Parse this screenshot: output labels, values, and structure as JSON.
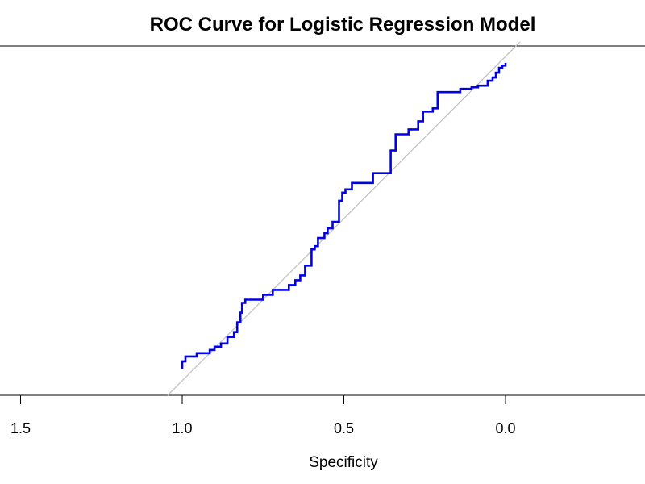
{
  "chart_data": {
    "type": "line",
    "title": "ROC Curve for Logistic Regression Model",
    "xlabel": "Specificity",
    "ylabel": "",
    "x_reversed": true,
    "xlim": [
      1.5,
      -0.4
    ],
    "ylim": [
      0,
      1
    ],
    "x_ticks": [
      1.5,
      1.0,
      0.5,
      0.0
    ],
    "x_tick_labels": [
      "1.5",
      "1.0",
      "0.5",
      "0.0"
    ],
    "grid": false,
    "legend": "none",
    "reference_line": {
      "from": [
        1,
        0
      ],
      "to": [
        0,
        1
      ],
      "color": "#c0c0c0"
    },
    "series": [
      {
        "color": "#0000ee",
        "points": [
          [
            1.0,
            0.035
          ],
          [
            1.0,
            0.06
          ],
          [
            0.99,
            0.06
          ],
          [
            0.99,
            0.075
          ],
          [
            0.955,
            0.075
          ],
          [
            0.955,
            0.085
          ],
          [
            0.915,
            0.085
          ],
          [
            0.915,
            0.095
          ],
          [
            0.9,
            0.095
          ],
          [
            0.9,
            0.105
          ],
          [
            0.88,
            0.105
          ],
          [
            0.88,
            0.115
          ],
          [
            0.86,
            0.115
          ],
          [
            0.86,
            0.135
          ],
          [
            0.84,
            0.135
          ],
          [
            0.84,
            0.15
          ],
          [
            0.83,
            0.15
          ],
          [
            0.83,
            0.18
          ],
          [
            0.82,
            0.18
          ],
          [
            0.82,
            0.21
          ],
          [
            0.815,
            0.21
          ],
          [
            0.815,
            0.24
          ],
          [
            0.805,
            0.24
          ],
          [
            0.805,
            0.25
          ],
          [
            0.75,
            0.25
          ],
          [
            0.75,
            0.265
          ],
          [
            0.72,
            0.265
          ],
          [
            0.72,
            0.28
          ],
          [
            0.67,
            0.28
          ],
          [
            0.67,
            0.295
          ],
          [
            0.65,
            0.295
          ],
          [
            0.65,
            0.31
          ],
          [
            0.635,
            0.31
          ],
          [
            0.635,
            0.325
          ],
          [
            0.62,
            0.325
          ],
          [
            0.62,
            0.355
          ],
          [
            0.6,
            0.355
          ],
          [
            0.6,
            0.405
          ],
          [
            0.59,
            0.405
          ],
          [
            0.59,
            0.415
          ],
          [
            0.58,
            0.415
          ],
          [
            0.58,
            0.44
          ],
          [
            0.56,
            0.44
          ],
          [
            0.56,
            0.455
          ],
          [
            0.55,
            0.455
          ],
          [
            0.55,
            0.47
          ],
          [
            0.535,
            0.47
          ],
          [
            0.535,
            0.49
          ],
          [
            0.515,
            0.49
          ],
          [
            0.515,
            0.555
          ],
          [
            0.505,
            0.555
          ],
          [
            0.505,
            0.58
          ],
          [
            0.495,
            0.58
          ],
          [
            0.495,
            0.59
          ],
          [
            0.475,
            0.59
          ],
          [
            0.475,
            0.61
          ],
          [
            0.41,
            0.61
          ],
          [
            0.41,
            0.64
          ],
          [
            0.355,
            0.64
          ],
          [
            0.355,
            0.71
          ],
          [
            0.34,
            0.71
          ],
          [
            0.34,
            0.76
          ],
          [
            0.3,
            0.76
          ],
          [
            0.3,
            0.775
          ],
          [
            0.27,
            0.775
          ],
          [
            0.27,
            0.8
          ],
          [
            0.255,
            0.8
          ],
          [
            0.255,
            0.83
          ],
          [
            0.225,
            0.83
          ],
          [
            0.225,
            0.84
          ],
          [
            0.21,
            0.84
          ],
          [
            0.21,
            0.89
          ],
          [
            0.14,
            0.89
          ],
          [
            0.14,
            0.9
          ],
          [
            0.105,
            0.9
          ],
          [
            0.105,
            0.905
          ],
          [
            0.085,
            0.905
          ],
          [
            0.085,
            0.91
          ],
          [
            0.055,
            0.91
          ],
          [
            0.055,
            0.925
          ],
          [
            0.04,
            0.925
          ],
          [
            0.04,
            0.935
          ],
          [
            0.03,
            0.935
          ],
          [
            0.03,
            0.95
          ],
          [
            0.02,
            0.95
          ],
          [
            0.02,
            0.965
          ],
          [
            0.01,
            0.965
          ],
          [
            0.01,
            0.972
          ],
          [
            0.0,
            0.972
          ],
          [
            0.0,
            0.98
          ]
        ]
      }
    ]
  }
}
